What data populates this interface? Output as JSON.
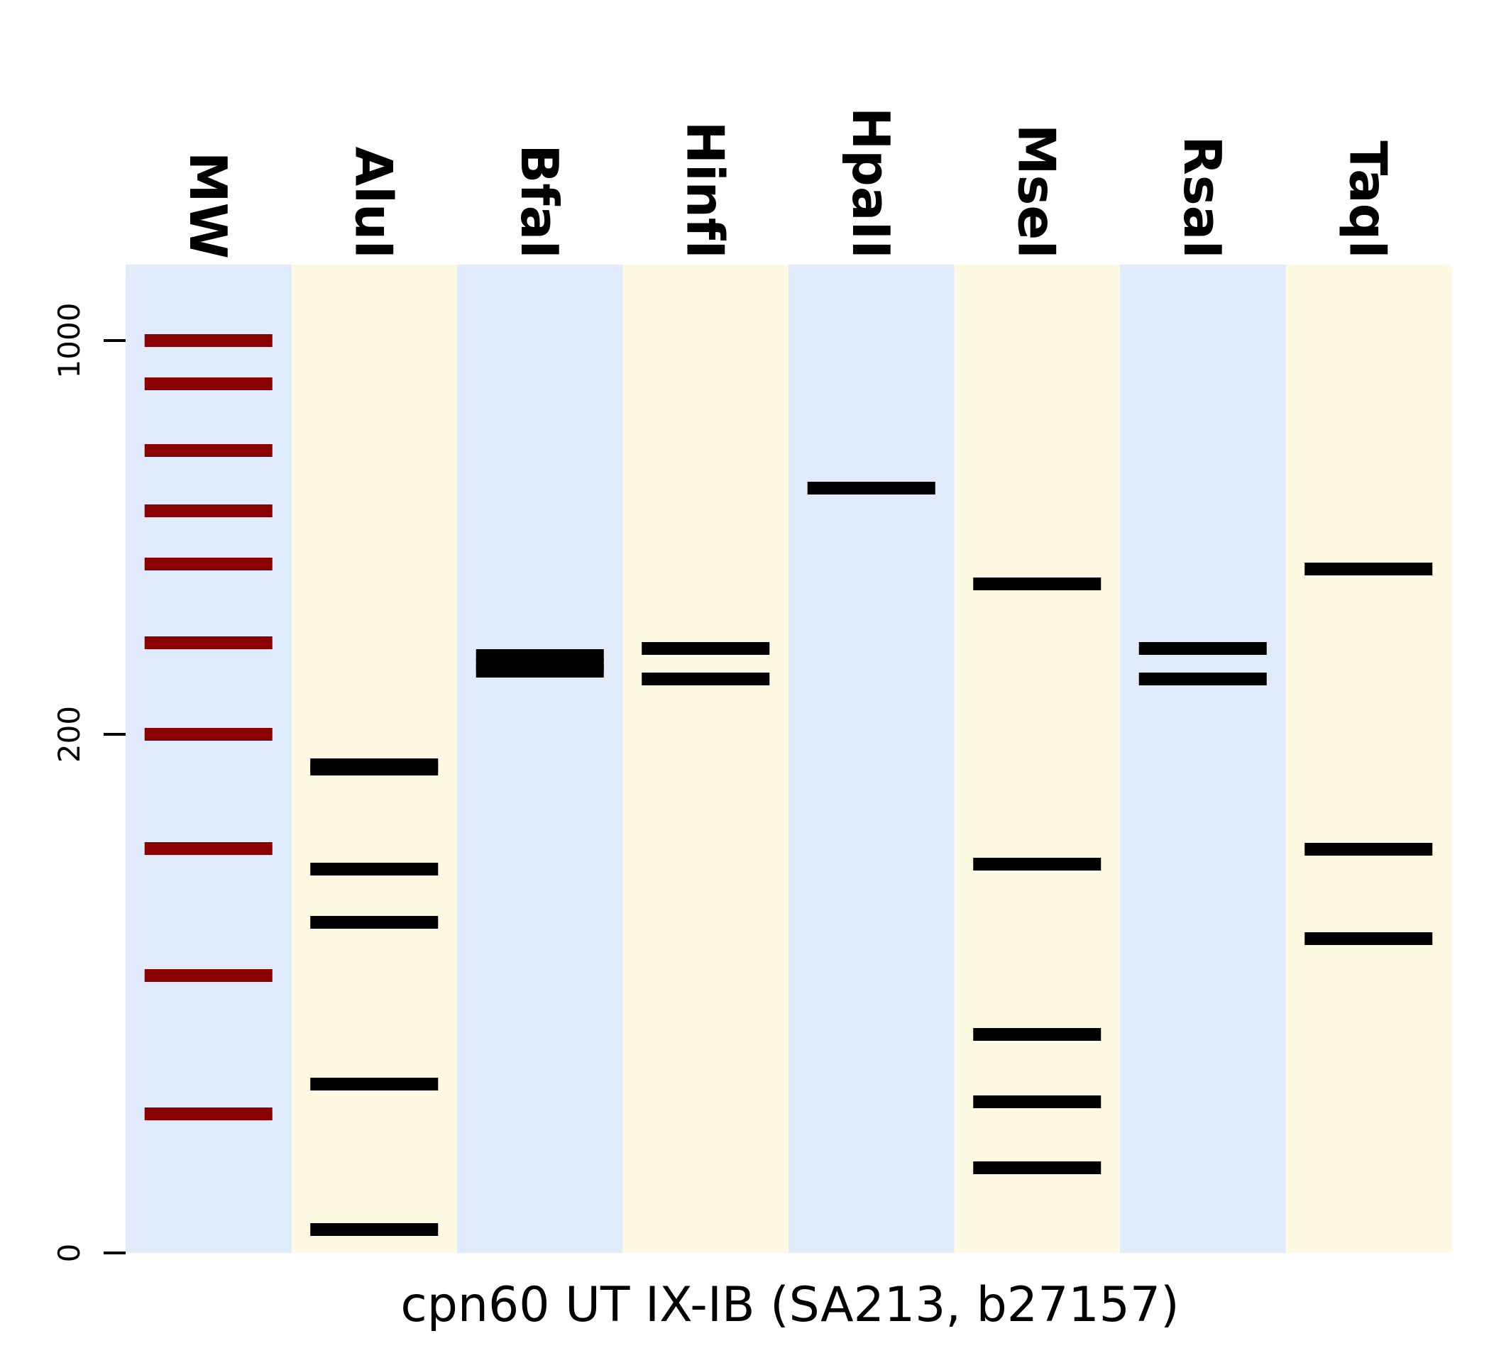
{
  "chart_data": {
    "type": "gel",
    "xlabel": "cpn60 UT IX-IB (SA213, b27157)",
    "ylabel": "",
    "y_scale": "nonlinear-gel",
    "y_ticks": [
      0,
      200,
      1000
    ],
    "colors": {
      "lane_blue": "#e0ebfb",
      "lane_yellow": "#fdf9e3",
      "marker_band": "#8b0000",
      "sample_band": "#000000"
    },
    "lanes": [
      {
        "label": "MW",
        "background": "blue",
        "is_marker": true,
        "bands": [
          1000,
          900,
          750,
          620,
          500,
          360,
          200,
          100,
          50,
          20
        ]
      },
      {
        "label": "AluI",
        "background": "yellow",
        "bands": [
          172,
          168,
          92,
          73,
          27,
          2
        ]
      },
      {
        "label": "BfaI",
        "background": "blue",
        "bands": [
          290,
          282,
          276
        ]
      },
      {
        "label": "HinfI",
        "background": "yellow",
        "bands": [
          295,
          262
        ]
      },
      {
        "label": "HpaII",
        "background": "blue",
        "bands": [
          700
        ]
      },
      {
        "label": "MseI",
        "background": "yellow",
        "bands": [
          450,
          94,
          44,
          22,
          12
        ]
      },
      {
        "label": "RsaI",
        "background": "blue",
        "bands": [
          295,
          262
        ]
      },
      {
        "label": "TaqI",
        "background": "yellow",
        "bands": [
          480,
          98,
          58
        ]
      }
    ]
  }
}
